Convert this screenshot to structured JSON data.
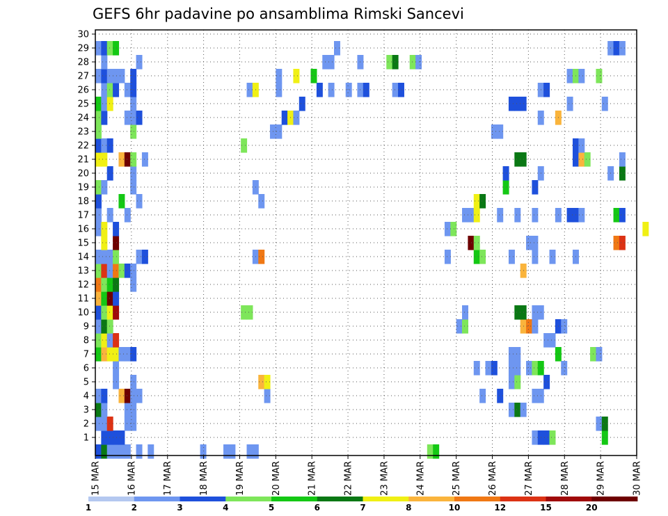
{
  "chart_data": {
    "type": "heatmap",
    "title": "GEFS 6hr padavine po ansamblima Rimski Sancevi",
    "xlabel": "",
    "ylabel": "",
    "x_ticks": [
      "15 MAR",
      "16 MAR",
      "17 MAR",
      "18 MAR",
      "19 MAR",
      "20 MAR",
      "21 MAR",
      "22 MAR",
      "23 MAR",
      "24 MAR",
      "25 MAR",
      "26 MAR",
      "27 MAR",
      "28 MAR",
      "29 MAR",
      "30 MAR"
    ],
    "y_ticks": [
      "1",
      "2",
      "3",
      "4",
      "5",
      "6",
      "7",
      "8",
      "9",
      "10",
      "11",
      "12",
      "13",
      "14",
      "15",
      "16",
      "17",
      "18",
      "19",
      "20",
      "21",
      "22",
      "23",
      "24",
      "25",
      "26",
      "27",
      "28",
      "29",
      "30"
    ],
    "x_range_days": [
      0,
      15
    ],
    "y_range": [
      0,
      30
    ],
    "grid": true,
    "legend_placement": "bottom",
    "color_scale": {
      "labels": [
        "1",
        "2",
        "3",
        "4",
        "5",
        "6",
        "7",
        "8",
        "10",
        "12",
        "15",
        "20"
      ],
      "colors": [
        "#b4c8f0",
        "#6e96f0",
        "#1e50dc",
        "#7ee65a",
        "#14c814",
        "#0a7814",
        "#f0f014",
        "#fab43c",
        "#f07814",
        "#dc3214",
        "#a00a0a",
        "#6e0000"
      ]
    },
    "values": [
      [
        0.5,
        0,
        2
      ],
      [
        1.5,
        0,
        5
      ],
      [
        2.5,
        0,
        1
      ],
      [
        3.5,
        0,
        1
      ],
      [
        4.5,
        0,
        1
      ],
      [
        5.5,
        0,
        1
      ],
      [
        7.5,
        0,
        1
      ],
      [
        9.5,
        0,
        1
      ],
      [
        18.5,
        0,
        1
      ],
      [
        22.5,
        0,
        1
      ],
      [
        23.5,
        0,
        1
      ],
      [
        26.5,
        0,
        1
      ],
      [
        27.5,
        0,
        1
      ],
      [
        57.5,
        0,
        3
      ],
      [
        58.5,
        0,
        4
      ],
      [
        1.5,
        1,
        2
      ],
      [
        2.5,
        1,
        2
      ],
      [
        3.5,
        1,
        2
      ],
      [
        4.5,
        1,
        2
      ],
      [
        75.5,
        1,
        1
      ],
      [
        76.5,
        1,
        2
      ],
      [
        77.5,
        1,
        2
      ],
      [
        78.5,
        1,
        3
      ],
      [
        87.5,
        1,
        4
      ],
      [
        0.5,
        2,
        1
      ],
      [
        1.5,
        2,
        1
      ],
      [
        2.5,
        2,
        9
      ],
      [
        5.5,
        2,
        1
      ],
      [
        6.5,
        2,
        1
      ],
      [
        86.5,
        2,
        1
      ],
      [
        87.5,
        2,
        5
      ],
      [
        0.5,
        3,
        5
      ],
      [
        1.5,
        3,
        1
      ],
      [
        5.5,
        3,
        1
      ],
      [
        6.5,
        3,
        1
      ],
      [
        71.5,
        3,
        1
      ],
      [
        72.5,
        3,
        5
      ],
      [
        73.5,
        3,
        1
      ],
      [
        0.5,
        4,
        1
      ],
      [
        1.5,
        4,
        2
      ],
      [
        4.5,
        4,
        7
      ],
      [
        5.5,
        4,
        11
      ],
      [
        6.5,
        4,
        1
      ],
      [
        7.5,
        4,
        1
      ],
      [
        29.5,
        4,
        1
      ],
      [
        66.5,
        4,
        1
      ],
      [
        69.5,
        4,
        2
      ],
      [
        75.5,
        4,
        1
      ],
      [
        76.5,
        4,
        1
      ],
      [
        3.5,
        5,
        1
      ],
      [
        6.5,
        5,
        1
      ],
      [
        28.5,
        5,
        7
      ],
      [
        29.5,
        5,
        6
      ],
      [
        71.5,
        5,
        1
      ],
      [
        72.5,
        5,
        3
      ],
      [
        77.5,
        5,
        2
      ],
      [
        3.5,
        6,
        1
      ],
      [
        65.5,
        6,
        1
      ],
      [
        67.5,
        6,
        1
      ],
      [
        68.5,
        6,
        2
      ],
      [
        71.5,
        6,
        1
      ],
      [
        72.5,
        6,
        1
      ],
      [
        74.5,
        6,
        1
      ],
      [
        75.5,
        6,
        3
      ],
      [
        76.5,
        6,
        4
      ],
      [
        80.5,
        6,
        1
      ],
      [
        0.5,
        7,
        4
      ],
      [
        1.5,
        7,
        7
      ],
      [
        2.5,
        7,
        6
      ],
      [
        3.5,
        7,
        6
      ],
      [
        4.5,
        7,
        1
      ],
      [
        5.5,
        7,
        1
      ],
      [
        6.5,
        7,
        2
      ],
      [
        71.5,
        7,
        1
      ],
      [
        72.5,
        7,
        1
      ],
      [
        79.5,
        7,
        4
      ],
      [
        85.5,
        7,
        3
      ],
      [
        86.5,
        7,
        1
      ],
      [
        0.5,
        8,
        3
      ],
      [
        1.5,
        8,
        6
      ],
      [
        2.5,
        8,
        1
      ],
      [
        3.5,
        8,
        9
      ],
      [
        77.5,
        8,
        1
      ],
      [
        78.5,
        8,
        1
      ],
      [
        0.5,
        9,
        1
      ],
      [
        1.5,
        9,
        5
      ],
      [
        2.5,
        9,
        3
      ],
      [
        62.5,
        9,
        1
      ],
      [
        63.5,
        9,
        3
      ],
      [
        73.5,
        9,
        7
      ],
      [
        74.5,
        9,
        8
      ],
      [
        75.5,
        9,
        1
      ],
      [
        79.5,
        9,
        2
      ],
      [
        80.5,
        9,
        1
      ],
      [
        0.5,
        10,
        2
      ],
      [
        1.5,
        10,
        3
      ],
      [
        2.5,
        10,
        6
      ],
      [
        3.5,
        10,
        10
      ],
      [
        25.5,
        10,
        3
      ],
      [
        26.5,
        10,
        3
      ],
      [
        63.5,
        10,
        1
      ],
      [
        72.5,
        10,
        5
      ],
      [
        73.5,
        10,
        5
      ],
      [
        75.5,
        10,
        1
      ],
      [
        76.5,
        10,
        1
      ],
      [
        0.5,
        11,
        7
      ],
      [
        1.5,
        11,
        4
      ],
      [
        2.5,
        11,
        11
      ],
      [
        3.5,
        11,
        2
      ],
      [
        0.5,
        12,
        8
      ],
      [
        1.5,
        12,
        3
      ],
      [
        2.5,
        12,
        4
      ],
      [
        3.5,
        12,
        5
      ],
      [
        6.5,
        12,
        1
      ],
      [
        0.5,
        13,
        3
      ],
      [
        1.5,
        13,
        9
      ],
      [
        2.5,
        13,
        1
      ],
      [
        3.5,
        13,
        8
      ],
      [
        4.5,
        13,
        3
      ],
      [
        5.5,
        13,
        2
      ],
      [
        6.5,
        13,
        1
      ],
      [
        73.5,
        13,
        7
      ],
      [
        0.5,
        14,
        1
      ],
      [
        1.5,
        14,
        1
      ],
      [
        2.5,
        14,
        1
      ],
      [
        3.5,
        14,
        3
      ],
      [
        7.5,
        14,
        1
      ],
      [
        8.5,
        14,
        2
      ],
      [
        27.5,
        14,
        1
      ],
      [
        28.5,
        14,
        8
      ],
      [
        60.5,
        14,
        1
      ],
      [
        65.5,
        14,
        4
      ],
      [
        66.5,
        14,
        3
      ],
      [
        71.5,
        14,
        1
      ],
      [
        75.5,
        14,
        1
      ],
      [
        78.5,
        14,
        1
      ],
      [
        82.5,
        14,
        1
      ],
      [
        1.5,
        15,
        6
      ],
      [
        3.5,
        15,
        11
      ],
      [
        64.5,
        15,
        11
      ],
      [
        65.5,
        15,
        3
      ],
      [
        74.5,
        15,
        1
      ],
      [
        75.5,
        15,
        1
      ],
      [
        89.5,
        15,
        8
      ],
      [
        90.5,
        15,
        9
      ],
      [
        0.5,
        16,
        1
      ],
      [
        1.5,
        16,
        6
      ],
      [
        3.5,
        16,
        2
      ],
      [
        60.5,
        16,
        1
      ],
      [
        61.5,
        16,
        3
      ],
      [
        94.5,
        16,
        6
      ],
      [
        0.5,
        17,
        1
      ],
      [
        2.5,
        17,
        1
      ],
      [
        5.5,
        17,
        1
      ],
      [
        63.5,
        17,
        1
      ],
      [
        64.5,
        17,
        1
      ],
      [
        65.5,
        17,
        6
      ],
      [
        69.5,
        17,
        1
      ],
      [
        72.5,
        17,
        1
      ],
      [
        75.5,
        17,
        1
      ],
      [
        79.5,
        17,
        1
      ],
      [
        81.5,
        17,
        2
      ],
      [
        82.5,
        17,
        2
      ],
      [
        83.5,
        17,
        1
      ],
      [
        89.5,
        17,
        4
      ],
      [
        90.5,
        17,
        2
      ],
      [
        0.5,
        18,
        2
      ],
      [
        4.5,
        18,
        4
      ],
      [
        7.5,
        18,
        1
      ],
      [
        28.5,
        18,
        1
      ],
      [
        65.5,
        18,
        6
      ],
      [
        66.5,
        18,
        5
      ],
      [
        0.5,
        19,
        3
      ],
      [
        1.5,
        19,
        1
      ],
      [
        6.5,
        19,
        1
      ],
      [
        27.5,
        19,
        1
      ],
      [
        70.5,
        19,
        4
      ],
      [
        75.5,
        19,
        2
      ],
      [
        2.5,
        20,
        2
      ],
      [
        6.5,
        20,
        1
      ],
      [
        70.5,
        20,
        2
      ],
      [
        76.5,
        20,
        1
      ],
      [
        88.5,
        20,
        1
      ],
      [
        90.5,
        20,
        5
      ],
      [
        0.5,
        21,
        6
      ],
      [
        1.5,
        21,
        6
      ],
      [
        4.5,
        21,
        7
      ],
      [
        5.5,
        21,
        11
      ],
      [
        6.5,
        21,
        3
      ],
      [
        8.5,
        21,
        1
      ],
      [
        72.5,
        21,
        5
      ],
      [
        73.5,
        21,
        5
      ],
      [
        82.5,
        21,
        2
      ],
      [
        83.5,
        21,
        7
      ],
      [
        84.5,
        21,
        3
      ],
      [
        90.5,
        21,
        1
      ],
      [
        0.5,
        22,
        2
      ],
      [
        1.5,
        22,
        1
      ],
      [
        2.5,
        22,
        2
      ],
      [
        25.5,
        22,
        3
      ],
      [
        82.5,
        22,
        2
      ],
      [
        83.5,
        22,
        1
      ],
      [
        0.5,
        23,
        3
      ],
      [
        6.5,
        23,
        3
      ],
      [
        30.5,
        23,
        1
      ],
      [
        31.5,
        23,
        1
      ],
      [
        68.5,
        23,
        1
      ],
      [
        69.5,
        23,
        1
      ],
      [
        0.5,
        24,
        3
      ],
      [
        1.5,
        24,
        2
      ],
      [
        5.5,
        24,
        1
      ],
      [
        6.5,
        24,
        1
      ],
      [
        7.5,
        24,
        2
      ],
      [
        32.5,
        24,
        2
      ],
      [
        33.5,
        24,
        6
      ],
      [
        34.5,
        24,
        1
      ],
      [
        76.5,
        24,
        1
      ],
      [
        79.5,
        24,
        7
      ],
      [
        0.5,
        25,
        4
      ],
      [
        1.5,
        25,
        1
      ],
      [
        2.5,
        25,
        6
      ],
      [
        6.5,
        25,
        1
      ],
      [
        35.5,
        25,
        2
      ],
      [
        71.5,
        25,
        2
      ],
      [
        72.5,
        25,
        2
      ],
      [
        73.5,
        25,
        2
      ],
      [
        81.5,
        25,
        1
      ],
      [
        87.5,
        25,
        1
      ],
      [
        1.5,
        26,
        1
      ],
      [
        2.5,
        26,
        3
      ],
      [
        3.5,
        26,
        2
      ],
      [
        5.5,
        26,
        1
      ],
      [
        6.5,
        26,
        2
      ],
      [
        26.5,
        26,
        1
      ],
      [
        27.5,
        26,
        6
      ],
      [
        31.5,
        26,
        1
      ],
      [
        38.5,
        26,
        2
      ],
      [
        40.5,
        26,
        1
      ],
      [
        43.5,
        26,
        1
      ],
      [
        45.5,
        26,
        1
      ],
      [
        46.5,
        26,
        2
      ],
      [
        51.5,
        26,
        1
      ],
      [
        52.5,
        26,
        2
      ],
      [
        76.5,
        26,
        1
      ],
      [
        77.5,
        26,
        2
      ],
      [
        0.5,
        27,
        1
      ],
      [
        1.5,
        27,
        2
      ],
      [
        2.5,
        27,
        1
      ],
      [
        3.5,
        27,
        1
      ],
      [
        4.5,
        27,
        1
      ],
      [
        6.5,
        27,
        2
      ],
      [
        31.5,
        27,
        1
      ],
      [
        34.5,
        27,
        6
      ],
      [
        37.5,
        27,
        4
      ],
      [
        81.5,
        27,
        1
      ],
      [
        82.5,
        27,
        3
      ],
      [
        83.5,
        27,
        1
      ],
      [
        86.5,
        27,
        3
      ],
      [
        1.5,
        28,
        1
      ],
      [
        7.5,
        28,
        1
      ],
      [
        39.5,
        28,
        1
      ],
      [
        40.5,
        28,
        1
      ],
      [
        45.5,
        28,
        1
      ],
      [
        50.5,
        28,
        3
      ],
      [
        51.5,
        28,
        5
      ],
      [
        54.5,
        28,
        3
      ],
      [
        55.5,
        28,
        1
      ],
      [
        0.5,
        29,
        1
      ],
      [
        1.5,
        29,
        2
      ],
      [
        2.5,
        29,
        3
      ],
      [
        3.5,
        29,
        4
      ],
      [
        41.5,
        29,
        1
      ],
      [
        88.5,
        29,
        1
      ],
      [
        89.5,
        29,
        2
      ],
      [
        90.5,
        29,
        1
      ]
    ]
  }
}
